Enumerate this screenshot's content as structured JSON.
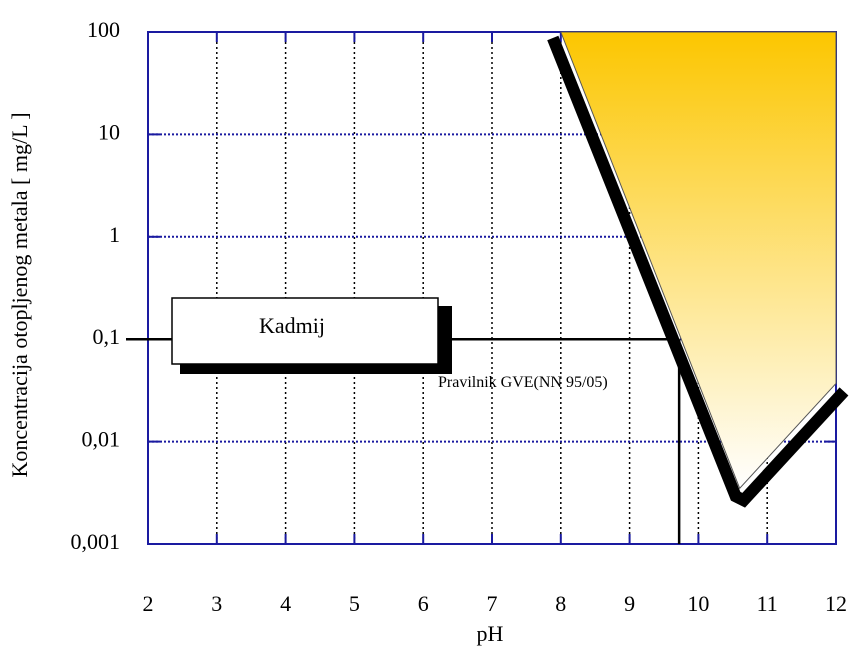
{
  "chart_data": {
    "type": "region",
    "xlabel": "pH",
    "ylabel": "Koncentracija otopljenog metala [ mg/L ]",
    "xlim": [
      2,
      12
    ],
    "xticks": [
      2,
      3,
      4,
      5,
      6,
      7,
      8,
      9,
      10,
      11,
      12
    ],
    "ylim": [
      0.001,
      100
    ],
    "log_y": true,
    "yticks": [
      {
        "value": 0.001,
        "label": "0,001"
      },
      {
        "value": 0.01,
        "label": "0,01"
      },
      {
        "value": 0.1,
        "label": "0,1"
      },
      1,
      10,
      100
    ],
    "grid": true,
    "series": [
      {
        "name": "Kadmij",
        "color": "#fcc600",
        "x": [
          8,
          12,
          12,
          10.6
        ],
        "values": [
          100,
          100,
          0.037,
          0.0035
        ]
      }
    ],
    "limit": {
      "label": "Pravilnik GVE(NN 95/05)",
      "value": 0.1,
      "x": 9.72
    }
  }
}
